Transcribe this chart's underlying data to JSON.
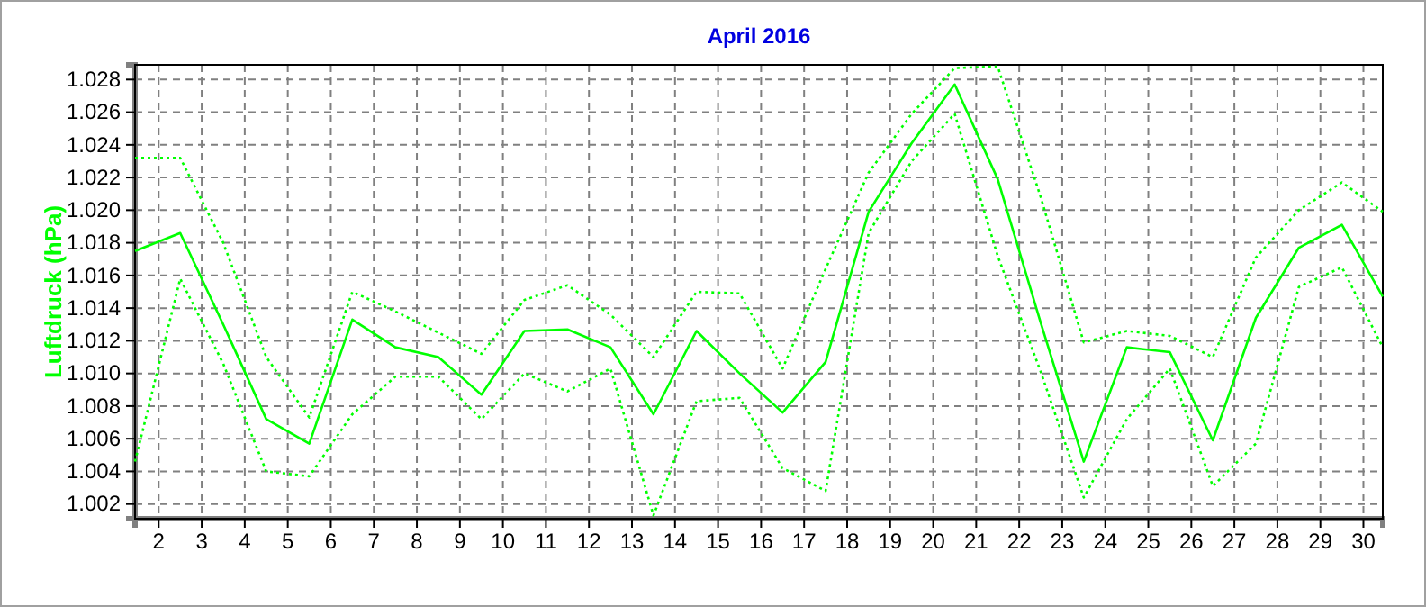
{
  "chart_data": {
    "type": "line",
    "title": "April 2016",
    "ylabel": "Luftdruck (hPa)",
    "x": [
      1.45,
      2.5,
      3.5,
      4.5,
      5.5,
      6.5,
      7.5,
      8.5,
      9.5,
      10.5,
      11.5,
      12.5,
      13.5,
      14.5,
      15.5,
      16.5,
      17.5,
      18.5,
      19.5,
      20.5,
      21.5,
      22.5,
      23.5,
      24.5,
      25.5,
      26.5,
      27.5,
      28.5,
      29.5,
      30.45
    ],
    "series": [
      {
        "color": "#00ff00",
        "line_style": "solid",
        "values": [
          1.0175,
          1.0186,
          1.013,
          1.0072,
          1.0057,
          1.0133,
          1.0116,
          1.011,
          1.0087,
          1.0126,
          1.0127,
          1.0116,
          1.0075,
          1.0126,
          1.01,
          1.0076,
          1.0107,
          1.0199,
          1.0241,
          1.0277,
          1.0219,
          1.0131,
          1.0046,
          1.0116,
          1.0113,
          1.0059,
          1.0134,
          1.0177,
          1.0191,
          1.0147
        ]
      },
      {
        "color": "#00ff00",
        "line_style": "dotted",
        "values": [
          1.0232,
          1.0232,
          1.018,
          1.011,
          1.0073,
          1.015,
          1.0138,
          1.0125,
          1.0112,
          1.0145,
          1.0154,
          1.0136,
          1.011,
          1.015,
          1.0149,
          1.0103,
          1.0164,
          1.0223,
          1.0259,
          1.0287,
          1.0288,
          1.0208,
          1.0119,
          1.0126,
          1.0123,
          1.011,
          1.0171,
          1.02,
          1.0217,
          1.0199
        ]
      },
      {
        "color": "#00ff00",
        "line_style": "dotted",
        "values": [
          1.0046,
          1.0158,
          1.0106,
          1.004,
          1.0037,
          1.0075,
          1.0098,
          1.0098,
          1.0072,
          1.01,
          1.0089,
          1.0103,
          1.0013,
          1.0083,
          1.0085,
          1.0042,
          1.0028,
          1.0186,
          1.023,
          1.0259,
          1.0172,
          1.0101,
          1.0024,
          1.0072,
          1.0103,
          1.0031,
          1.0057,
          1.0153,
          1.0165,
          1.0116
        ]
      }
    ],
    "xlim": [
      1.45,
      30.45
    ],
    "xticks": [
      2,
      3,
      4,
      5,
      6,
      7,
      8,
      9,
      10,
      11,
      12,
      13,
      14,
      15,
      16,
      17,
      18,
      19,
      20,
      21,
      22,
      23,
      24,
      25,
      26,
      27,
      28,
      29,
      30
    ],
    "ylim": [
      1.0011,
      1.0289
    ],
    "yticks": [
      {
        "value": 1.002,
        "label": "1.002"
      },
      {
        "value": 1.004,
        "label": "1.004"
      },
      {
        "value": 1.006,
        "label": "1.006"
      },
      {
        "value": 1.008,
        "label": "1.008"
      },
      {
        "value": 1.01,
        "label": "1.010"
      },
      {
        "value": 1.012,
        "label": "1.012"
      },
      {
        "value": 1.014,
        "label": "1.014"
      },
      {
        "value": 1.016,
        "label": "1.016"
      },
      {
        "value": 1.018,
        "label": "1.018"
      },
      {
        "value": 1.02,
        "label": "1.020"
      },
      {
        "value": 1.022,
        "label": "1.022"
      },
      {
        "value": 1.024,
        "label": "1.024"
      },
      {
        "value": 1.026,
        "label": "1.026"
      },
      {
        "value": 1.028,
        "label": "1.028"
      }
    ],
    "grid": true,
    "marker": "none"
  }
}
